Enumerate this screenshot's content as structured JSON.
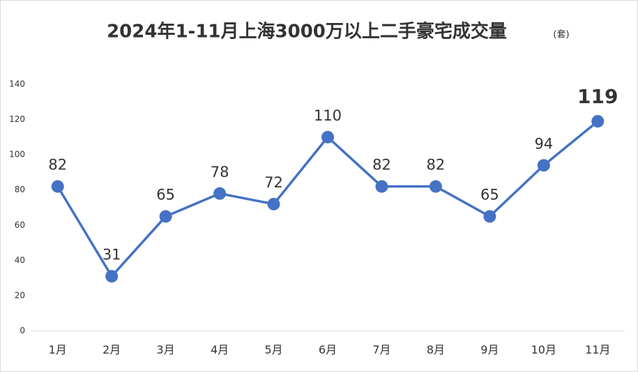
{
  "chart_data": {
    "type": "line",
    "title": "2024年1-11月上海3000万以上二手豪宅成交量",
    "unit": "(套)",
    "categories": [
      "1月",
      "2月",
      "3月",
      "4月",
      "5月",
      "6月",
      "7月",
      "8月",
      "9月",
      "10月",
      "11月"
    ],
    "series": [
      {
        "name": "成交量",
        "color": "#4472c4",
        "values": [
          82,
          31,
          65,
          78,
          72,
          110,
          82,
          82,
          65,
          94,
          119
        ]
      }
    ],
    "value_label_colors": [
      "#333333",
      "#333333",
      "#333333",
      "#333333",
      "#333333",
      "#333333",
      "#333333",
      "#333333",
      "#333333",
      "#333333",
      "#c00000"
    ],
    "ylim": [
      0,
      140
    ],
    "yticks": [
      0,
      20,
      40,
      60,
      80,
      100,
      120,
      140
    ],
    "grid": false,
    "legend": false
  }
}
